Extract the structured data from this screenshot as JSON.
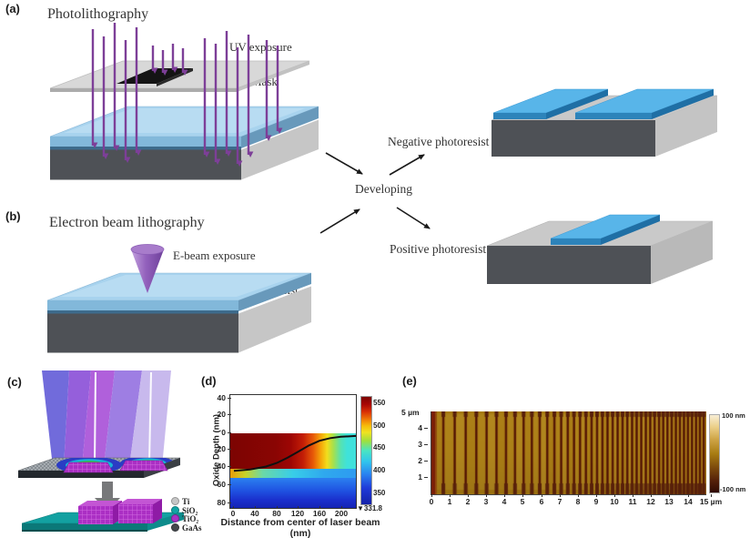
{
  "figure": {
    "panel_labels": {
      "a": "(a)",
      "b": "(b)",
      "c": "(c)",
      "d": "(d)",
      "e": "(e)"
    }
  },
  "panel_a": {
    "title": "Photolithography",
    "labels": {
      "uv": "UV exposure",
      "mask": "Mask",
      "photoresist": "Photoresist"
    }
  },
  "panel_b": {
    "title": "Electron beam lithography",
    "labels": {
      "ebeam": "E-beam exposure",
      "photoresist": "Photoresist"
    }
  },
  "developing": {
    "center": "Developing",
    "negative": "Negative photoresist",
    "positive": "Positive photoresist"
  },
  "panel_c": {
    "legend": [
      {
        "label": "Ti",
        "color": "#c6c6c6"
      },
      {
        "label": "SiO₂",
        "color": "#12a5a5"
      },
      {
        "label": "TiO₂",
        "color": "#a832c4"
      },
      {
        "label": "GaAs",
        "color": "#44484c"
      }
    ]
  },
  "panel_d": {
    "ylabel": "Oxide Depth (nm)",
    "xlabel": "Distance from center of laser beam (nm)",
    "yticks": [
      "40",
      "20",
      "0",
      "20",
      "40",
      "60",
      "80"
    ],
    "xticks": [
      "0",
      "40",
      "80",
      "120",
      "160",
      "200"
    ],
    "colorbar_ticks": [
      "550",
      "500",
      "450",
      "400",
      "350"
    ],
    "colorbar_min_label": "▼331.8"
  },
  "panel_e": {
    "ylabel_top": "5 µm",
    "yticks": [
      "4",
      "3",
      "2",
      "1"
    ],
    "xticks": [
      "0",
      "1",
      "2",
      "3",
      "4",
      "5",
      "6",
      "7",
      "8",
      "9",
      "10",
      "11",
      "12",
      "13",
      "14"
    ],
    "xtick_last": "15 µm",
    "colorbar_max": "100 nm",
    "colorbar_min": "-100 nm"
  },
  "chart_data": [
    {
      "id": "panel_d",
      "type": "heatmap",
      "xlabel": "Distance from center of laser beam (nm)",
      "ylabel": "Oxide Depth (nm)",
      "xlim": [
        0,
        228
      ],
      "depth_axis_nm": [
        -40,
        80
      ],
      "xticks": [
        0,
        40,
        80,
        120,
        160,
        200
      ],
      "yticks_depth_nm": [
        -40,
        -20,
        0,
        20,
        40,
        60,
        80
      ],
      "colorbar": {
        "ticks": [
          550,
          500,
          450,
          400,
          350
        ],
        "min_marker": 331.8
      },
      "oxide_boundary_curve_nm": [
        [
          0,
          43
        ],
        [
          30,
          41.5
        ],
        [
          60,
          38
        ],
        [
          80,
          34
        ],
        [
          100,
          28
        ],
        [
          120,
          21
        ],
        [
          140,
          14
        ],
        [
          160,
          8.5
        ],
        [
          180,
          5.5
        ],
        [
          200,
          4
        ],
        [
          228,
          3
        ]
      ],
      "description": "Dark-red high-value region from surface (0 nm) to ~43 nm depth near beam center, fading through orange/yellow to cyan beyond ~160 nm lateral distance; blue low-value substrate below ~45 nm; black curve marks oxide boundary"
    },
    {
      "id": "panel_e",
      "type": "afm-topography",
      "x_range_um": [
        0,
        15
      ],
      "y_range_um": [
        0,
        5
      ],
      "height_scale_nm": [
        -100,
        100
      ],
      "xticks_um": [
        0,
        1,
        2,
        3,
        4,
        5,
        6,
        7,
        8,
        9,
        10,
        11,
        12,
        13,
        14,
        15
      ],
      "yticks_um": [
        1,
        2,
        3,
        4,
        5
      ],
      "groove_positions_um": [
        0.65,
        1.27,
        1.87,
        2.45,
        3.01,
        3.55,
        4.07,
        4.56,
        5.03,
        5.48,
        5.91,
        6.32,
        6.71,
        7.08,
        7.44,
        7.78,
        8.11,
        8.43,
        8.74,
        9.04,
        9.33,
        9.61,
        9.89,
        10.16,
        10.43,
        10.69,
        10.95,
        11.2,
        11.45,
        11.7,
        11.94,
        12.18,
        12.42,
        12.65,
        12.88,
        13.11,
        13.34,
        13.56,
        13.78,
        14.0,
        14.22,
        14.44,
        14.65,
        14.86
      ],
      "description": "Gold/brown grating stripes with chirped (decreasing) pitch from ~0.6 µm at left to ~0.22 µm at right"
    }
  ]
}
